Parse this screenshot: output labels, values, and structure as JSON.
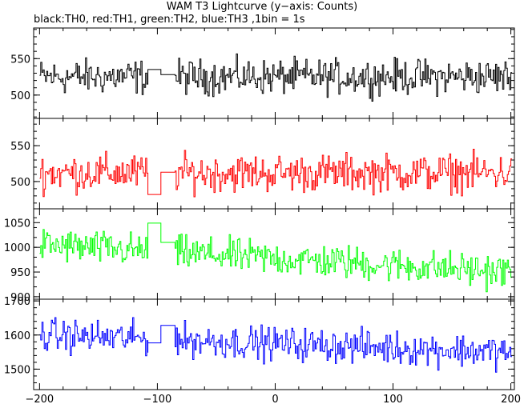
{
  "title": "WAM T3 Lightcurve (y−axis: Counts)",
  "subtitle": "black:TH0, red:TH1, green:TH2, blue:TH3 ,1bin = 1s",
  "chart_data": {
    "type": "line",
    "title": "WAM T3 Lightcurve (y−axis: Counts)",
    "subtitle": "black:TH0, red:TH1, green:TH2, blue:TH3 ,1bin = 1s",
    "x_range": [
      -205,
      203
    ],
    "x_ticks": [
      -200,
      -100,
      0,
      100,
      200
    ],
    "x_tick_labels": [
      "−200",
      "−100",
      "0",
      "100",
      "200"
    ],
    "bin_size_s": 1,
    "data_gap": {
      "x_start": -108,
      "x_end": -86
    },
    "panels": [
      {
        "name": "TH0",
        "color": "#000000",
        "ylim": [
          468,
          592
        ],
        "y_ticks": [
          500,
          550
        ],
        "y_tick_labels": [
          "500",
          "550"
        ],
        "mean": 525,
        "noise_amplitude": 22,
        "trend_per_400s": 0,
        "gap_level_left": 535,
        "gap_level_right": 528
      },
      {
        "name": "TH1",
        "color": "#ff0000",
        "ylim": [
          462,
          588
        ],
        "y_ticks": [
          500,
          550
        ],
        "y_tick_labels": [
          "500",
          "550"
        ],
        "mean": 512,
        "noise_amplitude": 24,
        "trend_per_400s": 0,
        "gap_level_left": 482,
        "gap_level_right": 513
      },
      {
        "name": "TH2",
        "color": "#00ff00",
        "ylim": [
          895,
          1078
        ],
        "y_ticks": [
          900,
          950,
          1000,
          1050
        ],
        "y_tick_labels": [
          "900",
          "950",
          "1000",
          "1050"
        ],
        "mean": 1005,
        "noise_amplitude": 32,
        "trend_per_400s": -55,
        "gap_level_left": 1049,
        "gap_level_right": 1010
      },
      {
        "name": "TH3",
        "color": "#0000ff",
        "ylim": [
          1440,
          1705
        ],
        "y_ticks": [
          1500,
          1600,
          1700
        ],
        "y_tick_labels": [
          "1500",
          "1600",
          "1700"
        ],
        "mean": 1600,
        "noise_amplitude": 45,
        "trend_per_400s": -50,
        "gap_level_left": 1577,
        "gap_level_right": 1628
      }
    ]
  }
}
